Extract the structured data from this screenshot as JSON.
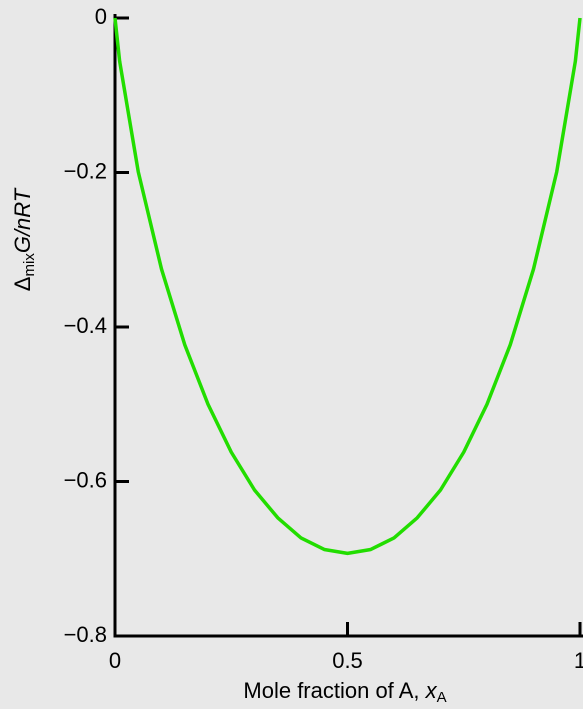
{
  "chart_data": {
    "type": "line",
    "ylabel": [
      "Δ",
      "mix",
      "G/nRT"
    ],
    "xlabel": [
      "Mole fraction of A, ",
      "x",
      "A"
    ],
    "x": [
      0,
      0.01,
      0.05,
      0.1,
      0.15,
      0.2,
      0.25,
      0.3,
      0.35,
      0.4,
      0.45,
      0.5,
      0.55,
      0.6,
      0.65,
      0.7,
      0.75,
      0.8,
      0.85,
      0.9,
      0.95,
      0.99,
      1
    ],
    "series": [
      {
        "color": "#22dd00",
        "values": [
          0,
          -0.056,
          -0.199,
          -0.325,
          -0.423,
          -0.5,
          -0.562,
          -0.611,
          -0.647,
          -0.673,
          -0.688,
          -0.693,
          -0.688,
          -0.673,
          -0.647,
          -0.611,
          -0.562,
          -0.5,
          -0.423,
          -0.325,
          -0.199,
          -0.056,
          0
        ]
      }
    ],
    "xlim": [
      0,
      1
    ],
    "ylim": [
      -0.8,
      0
    ],
    "xticks": [
      0,
      0.5,
      1
    ],
    "yticks": [
      0,
      {
        "value": -0.2,
        "label": "−0.2"
      },
      {
        "value": -0.4,
        "label": "−0.4"
      },
      {
        "value": -0.6,
        "label": "−0.6"
      },
      {
        "value": -0.8,
        "label": "−0.8"
      }
    ]
  }
}
